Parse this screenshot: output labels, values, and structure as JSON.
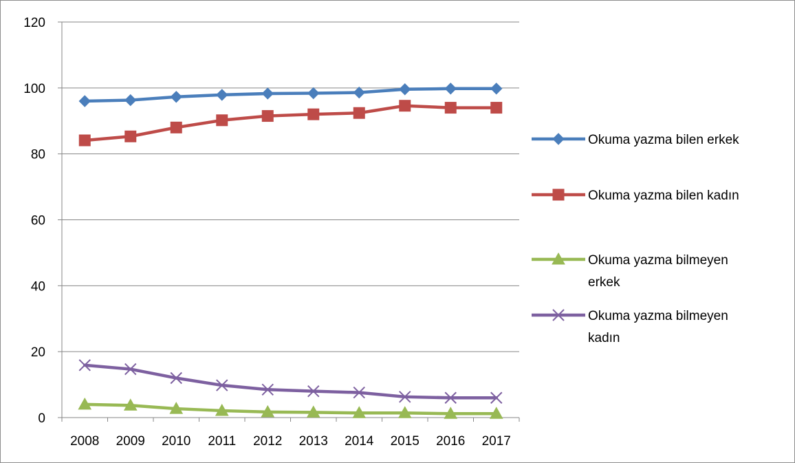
{
  "chart_data": {
    "type": "line",
    "title": "",
    "xlabel": "",
    "ylabel": "",
    "categories": [
      "2008",
      "2009",
      "2010",
      "2011",
      "2012",
      "2013",
      "2014",
      "2015",
      "2016",
      "2017"
    ],
    "ylim": [
      0,
      120
    ],
    "yticks": [
      0,
      20,
      40,
      60,
      80,
      100,
      120
    ],
    "grid": true,
    "legend_position": "right",
    "series": [
      {
        "name": "Okuma yazma bilen erkek",
        "legend_lines": [
          "Okuma yazma bilen erkek"
        ],
        "color": "#4a7ebb",
        "marker": "diamond",
        "values": [
          96.0,
          96.3,
          97.3,
          97.9,
          98.3,
          98.4,
          98.6,
          99.6,
          99.8,
          99.8
        ]
      },
      {
        "name": "Okuma yazma bilen kadın",
        "legend_lines": [
          "Okuma yazma bilen kadın"
        ],
        "color": "#be4b48",
        "marker": "square",
        "values": [
          84.1,
          85.3,
          88.0,
          90.2,
          91.5,
          92.0,
          92.4,
          94.6,
          94.0,
          94.0
        ]
      },
      {
        "name": "Okuma yazma bilmeyen erkek",
        "legend_lines": [
          "Okuma yazma bilmeyen",
          "erkek"
        ],
        "color": "#98b954",
        "marker": "triangle",
        "values": [
          4.0,
          3.7,
          2.7,
          2.1,
          1.7,
          1.6,
          1.4,
          1.4,
          1.2,
          1.2
        ]
      },
      {
        "name": "Okuma yazma bilmeyen kadın",
        "legend_lines": [
          "Okuma yazma bilmeyen",
          "kadın"
        ],
        "color": "#7d60a0",
        "marker": "x",
        "values": [
          15.9,
          14.7,
          12.0,
          9.8,
          8.5,
          8.0,
          7.6,
          6.3,
          6.0,
          6.0
        ]
      }
    ]
  }
}
